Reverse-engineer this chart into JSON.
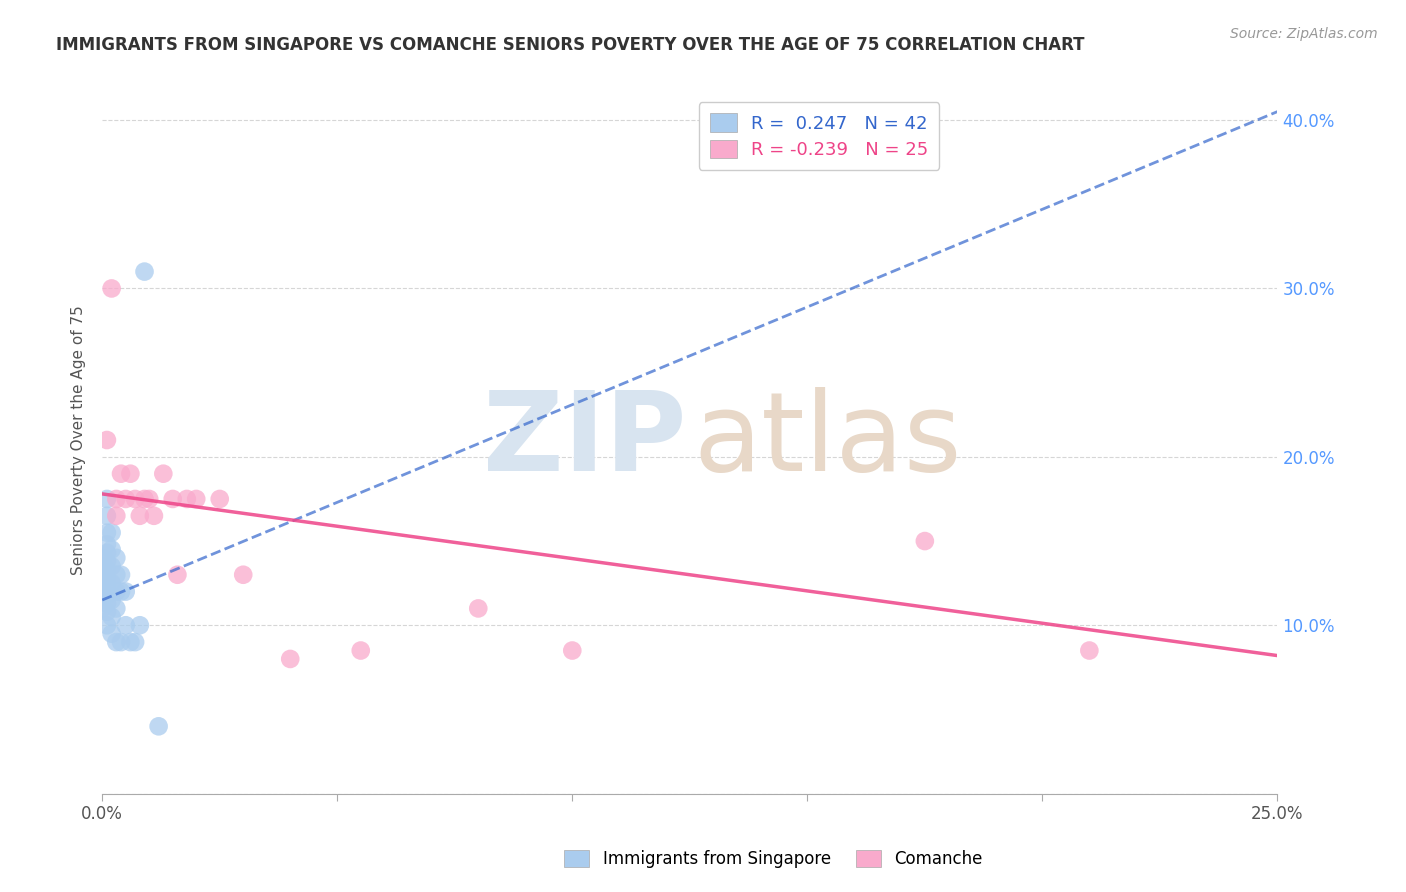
{
  "title": "IMMIGRANTS FROM SINGAPORE VS COMANCHE SENIORS POVERTY OVER THE AGE OF 75 CORRELATION CHART",
  "source": "Source: ZipAtlas.com",
  "ylabel": "Seniors Poverty Over the Age of 75",
  "xlabel_blue": "Immigrants from Singapore",
  "xlabel_pink": "Comanche",
  "xlim": [
    0.0,
    0.25
  ],
  "ylim": [
    0.0,
    0.42
  ],
  "ytick_labels_right": [
    "10.0%",
    "20.0%",
    "30.0%",
    "40.0%"
  ],
  "legend_blue_R": "R =  0.247",
  "legend_blue_N": "N = 42",
  "legend_pink_R": "R = -0.239",
  "legend_pink_N": "N = 25",
  "blue_scatter_x": [
    0.0,
    0.0,
    0.0,
    0.0,
    0.0,
    0.0,
    0.0,
    0.001,
    0.001,
    0.001,
    0.001,
    0.001,
    0.001,
    0.001,
    0.001,
    0.001,
    0.001,
    0.001,
    0.001,
    0.001,
    0.002,
    0.002,
    0.002,
    0.002,
    0.002,
    0.002,
    0.002,
    0.003,
    0.003,
    0.003,
    0.003,
    0.003,
    0.004,
    0.004,
    0.004,
    0.005,
    0.005,
    0.006,
    0.007,
    0.008,
    0.009,
    0.012
  ],
  "blue_scatter_y": [
    0.14,
    0.135,
    0.13,
    0.125,
    0.12,
    0.115,
    0.11,
    0.175,
    0.165,
    0.155,
    0.148,
    0.143,
    0.138,
    0.133,
    0.128,
    0.123,
    0.118,
    0.113,
    0.108,
    0.1,
    0.155,
    0.145,
    0.135,
    0.125,
    0.115,
    0.105,
    0.095,
    0.14,
    0.13,
    0.12,
    0.11,
    0.09,
    0.13,
    0.12,
    0.09,
    0.12,
    0.1,
    0.09,
    0.09,
    0.1,
    0.31,
    0.04
  ],
  "pink_scatter_x": [
    0.001,
    0.002,
    0.003,
    0.003,
    0.004,
    0.005,
    0.006,
    0.007,
    0.008,
    0.009,
    0.01,
    0.011,
    0.013,
    0.015,
    0.016,
    0.018,
    0.02,
    0.025,
    0.03,
    0.04,
    0.055,
    0.08,
    0.1,
    0.175,
    0.21
  ],
  "pink_scatter_y": [
    0.21,
    0.3,
    0.165,
    0.175,
    0.19,
    0.175,
    0.19,
    0.175,
    0.165,
    0.175,
    0.175,
    0.165,
    0.19,
    0.175,
    0.13,
    0.175,
    0.175,
    0.175,
    0.13,
    0.08,
    0.085,
    0.11,
    0.085,
    0.15,
    0.085
  ],
  "blue_line_x": [
    0.0,
    0.25
  ],
  "blue_line_y": [
    0.115,
    0.405
  ],
  "pink_line_x": [
    0.0,
    0.25
  ],
  "pink_line_y": [
    0.178,
    0.082
  ],
  "background_color": "#ffffff",
  "scatter_blue_color": "#aaccee",
  "scatter_pink_color": "#f9aacc",
  "line_blue_color": "#3366cc",
  "line_pink_color": "#ee4488",
  "grid_color": "#cccccc",
  "title_color": "#333333",
  "source_color": "#999999",
  "right_tick_color": "#5599ff",
  "watermark_zip_color": "#d8e4f0",
  "watermark_atlas_color": "#e8d8c8",
  "legend_text_color": "#333333",
  "legend_border_color": "#cccccc"
}
